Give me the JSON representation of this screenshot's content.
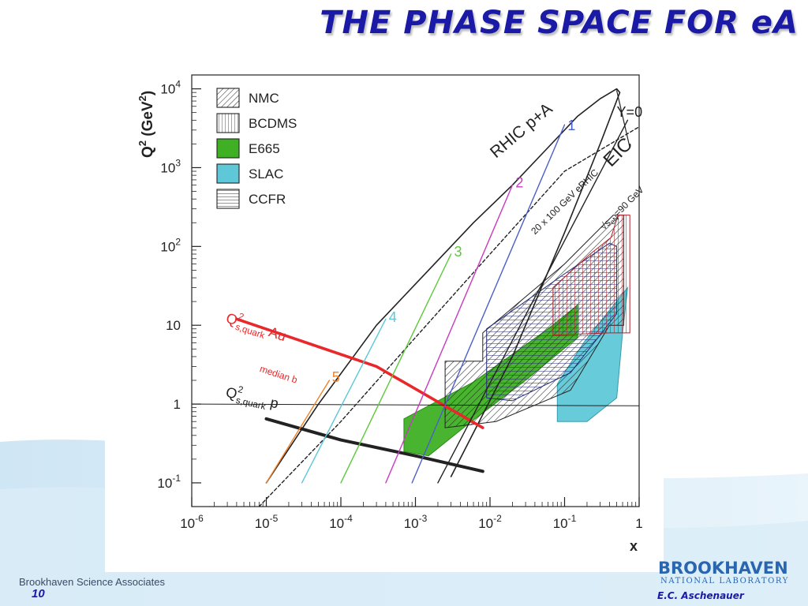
{
  "slide": {
    "title": "THE PHASE SPACE FOR eA",
    "footer_org": "Brookhaven Science Associates",
    "page_number": "10",
    "logo_name": "BROOKHAVEN",
    "logo_sub": "NATIONAL LABORATORY",
    "author": "E.C. Aschenauer",
    "colors": {
      "title": "#1a1aa6",
      "accent": "#2a66b0",
      "background_wave": "#cfe6f5"
    }
  },
  "chart_data": {
    "type": "region-plot",
    "title": "",
    "xlabel": "x",
    "ylabel_main": "Q",
    "ylabel_sup": "2",
    "ylabel_unit": " (GeV",
    "ylabel_unit_sup": "2",
    "ylabel_close": ")",
    "x_scale": "log",
    "y_scale": "log",
    "xlim": [
      1e-06,
      1
    ],
    "ylim": [
      0.05,
      15000
    ],
    "x_ticks": [
      {
        "value": 1e-06,
        "base": "10",
        "exp": "-6"
      },
      {
        "value": 1e-05,
        "base": "10",
        "exp": "-5"
      },
      {
        "value": 0.0001,
        "base": "10",
        "exp": "-4"
      },
      {
        "value": 0.001,
        "base": "10",
        "exp": "-3"
      },
      {
        "value": 0.01,
        "base": "10",
        "exp": "-2"
      },
      {
        "value": 0.1,
        "base": "10",
        "exp": "-1"
      },
      {
        "value": 1,
        "base": "1",
        "exp": ""
      }
    ],
    "y_ticks": [
      {
        "value": 0.1,
        "base": "10",
        "exp": "-1"
      },
      {
        "value": 1,
        "base": "1",
        "exp": ""
      },
      {
        "value": 10,
        "base": "10",
        "exp": ""
      },
      {
        "value": 100,
        "base": "10",
        "exp": "2"
      },
      {
        "value": 1000,
        "base": "10",
        "exp": "3"
      },
      {
        "value": 10000,
        "base": "10",
        "exp": "4"
      }
    ],
    "grid": false,
    "legend": {
      "placement": "top-left",
      "entries": [
        {
          "label": "NMC",
          "color": "#222222",
          "pattern": "diagonal-hatch"
        },
        {
          "label": "BCDMS",
          "color": "#b0202a",
          "pattern": "vertical-hatch"
        },
        {
          "label": "E665",
          "color": "#3fb024",
          "pattern": "solid"
        },
        {
          "label": "SLAC",
          "color": "#5fc8d8",
          "pattern": "solid"
        },
        {
          "label": "CCFR",
          "color": "#222a7a",
          "pattern": "horizontal-hatch"
        }
      ]
    },
    "regions": [
      {
        "name": "E665",
        "color": "#3fb024",
        "points": [
          [
            0.0007,
            0.25
          ],
          [
            0.0007,
            0.65
          ],
          [
            0.006,
            1.9
          ],
          [
            0.06,
            9
          ],
          [
            0.15,
            18
          ],
          [
            0.15,
            7
          ],
          [
            0.03,
            2
          ],
          [
            0.005,
            0.55
          ],
          [
            0.0015,
            0.22
          ]
        ]
      },
      {
        "name": "SLAC",
        "color": "#5fc8d8",
        "points": [
          [
            0.08,
            0.6
          ],
          [
            0.08,
            1.8
          ],
          [
            0.18,
            6
          ],
          [
            0.6,
            25
          ],
          [
            0.7,
            30
          ],
          [
            0.6,
            8
          ],
          [
            0.5,
            1.2
          ],
          [
            0.2,
            0.6
          ]
        ]
      },
      {
        "name": "NMC",
        "color": "#222222",
        "points": [
          [
            0.0025,
            0.5
          ],
          [
            0.0025,
            3.5
          ],
          [
            0.008,
            3.5
          ],
          [
            0.008,
            8
          ],
          [
            0.1,
            60
          ],
          [
            0.45,
            250
          ],
          [
            0.62,
            250
          ],
          [
            0.62,
            10
          ],
          [
            0.4,
            10
          ],
          [
            0.12,
            1.5
          ],
          [
            0.012,
            0.6
          ]
        ]
      },
      {
        "name": "CCFR",
        "color": "#222a7a",
        "points": [
          [
            0.009,
            1.2
          ],
          [
            0.009,
            9
          ],
          [
            0.1,
            45
          ],
          [
            0.4,
            110
          ],
          [
            0.5,
            100
          ],
          [
            0.5,
            14
          ],
          [
            0.12,
            2.5
          ],
          [
            0.02,
            1.1
          ]
        ]
      },
      {
        "name": "BCDMS",
        "color": "#b0202a",
        "points": [
          [
            0.07,
            7.5
          ],
          [
            0.07,
            30
          ],
          [
            0.22,
            80
          ],
          [
            0.42,
            130
          ],
          [
            0.52,
            250
          ],
          [
            0.75,
            250
          ],
          [
            0.75,
            8
          ],
          [
            0.4,
            8
          ]
        ]
      }
    ],
    "curves": [
      {
        "name": "RHIC p+A",
        "color": "#222222",
        "width": 1.6,
        "points": [
          [
            1e-05,
            0.1
          ],
          [
            5e-05,
            1
          ],
          [
            0.0003,
            10
          ],
          [
            0.0015,
            50
          ],
          [
            0.006,
            200
          ],
          [
            0.02,
            600
          ],
          [
            0.06,
            1800
          ],
          [
            0.15,
            4500
          ],
          [
            0.3,
            7500
          ],
          [
            0.5,
            10000
          ],
          [
            0.55,
            9000
          ],
          [
            0.3,
            2000
          ],
          [
            0.1,
            150
          ],
          [
            0.02,
            4
          ],
          [
            0.003,
            0.12
          ]
        ]
      },
      {
        "name": "EIC",
        "color": "#222222",
        "width": 1.4,
        "dashed": true,
        "points": [
          [
            8e-06,
            0.05
          ],
          [
            0.0001,
            0.6
          ],
          [
            0.001,
            7
          ],
          [
            0.01,
            80
          ],
          [
            0.1,
            900
          ],
          [
            1,
            3300
          ]
        ]
      },
      {
        "name": "Y=0",
        "color": "#222222",
        "width": 1.2,
        "points": [
          [
            0.5,
            9500
          ],
          [
            0.75,
            1800
          ]
        ]
      },
      {
        "name": "Q2 s,quark Au median b",
        "color": "#e8282a",
        "width": 3.6,
        "points": [
          [
            4e-06,
            12
          ],
          [
            0.0003,
            3
          ],
          [
            0.008,
            0.5
          ]
        ]
      },
      {
        "name": "Q2 s,quark p",
        "color": "#222222",
        "width": 4.0,
        "points": [
          [
            1e-05,
            0.65
          ],
          [
            0.0001,
            0.35
          ],
          [
            0.001,
            0.22
          ],
          [
            0.008,
            0.14
          ]
        ]
      },
      {
        "name": "Q2 = 1",
        "color": "#222222",
        "width": 1.0,
        "points": [
          [
            1e-06,
            1.0
          ],
          [
            1,
            0.95
          ]
        ]
      },
      {
        "name": "1",
        "color": "#4a5fc8",
        "width": 1.4,
        "points": [
          [
            0.0009,
            0.1
          ],
          [
            0.1,
            3500
          ]
        ]
      },
      {
        "name": "2",
        "color": "#c83ac0",
        "width": 1.4,
        "points": [
          [
            0.0004,
            0.1
          ],
          [
            0.02,
            600
          ]
        ]
      },
      {
        "name": "3",
        "color": "#5ec83a",
        "width": 1.4,
        "points": [
          [
            0.0001,
            0.1
          ],
          [
            0.003,
            80
          ]
        ]
      },
      {
        "name": "4",
        "color": "#5ac8d8",
        "width": 1.4,
        "points": [
          [
            3e-05,
            0.1
          ],
          [
            0.0004,
            12
          ]
        ]
      },
      {
        "name": "5",
        "color": "#f08228",
        "width": 1.4,
        "points": [
          [
            1e-05,
            0.1
          ],
          [
            7e-05,
            2
          ]
        ]
      },
      {
        "name": "extra",
        "color": "#222222",
        "width": 1.4,
        "points": [
          [
            0.002,
            0.1
          ],
          [
            0.7,
            4000
          ]
        ]
      }
    ],
    "annotations": [
      {
        "text": "1",
        "color": "#4a5fc8",
        "x": 0.11,
        "y": 3000
      },
      {
        "text": "2",
        "color": "#c83ac0",
        "x": 0.022,
        "y": 560
      },
      {
        "text": "3",
        "color": "#5ec83a",
        "x": 0.0033,
        "y": 75
      },
      {
        "text": "4",
        "color": "#5ac8d8",
        "x": 0.00044,
        "y": 11
      },
      {
        "text": "5",
        "color": "#f08228",
        "x": 7.6e-05,
        "y": 1.9
      },
      {
        "text": "RHIC p+A",
        "color": "#222222",
        "x": 0.012,
        "y": 1300,
        "rotate": -40
      },
      {
        "text": "Y=0",
        "color": "#222222",
        "x": 0.5,
        "y": 4400
      },
      {
        "text": "20 x 100 GeV eRHIC",
        "color": "#222222",
        "x": 0.04,
        "y": 140,
        "rotate": -44,
        "small": true
      },
      {
        "text": "EIC",
        "color": "#222222",
        "x": 0.42,
        "y": 1000,
        "rotate": -45,
        "big": true
      },
      {
        "text": "√s",
        "sub": "eN",
        "tail": "=90 GeV",
        "color": "#222222",
        "x": 0.34,
        "y": 160,
        "rotate": -45,
        "small": true
      },
      {
        "text": "Q",
        "sup": "2",
        "sub": "s,quark",
        "tail": " Au",
        "color": "#e8282a",
        "x": 2.8e-06,
        "y": 11,
        "rotate": 18
      },
      {
        "text": "median b",
        "color": "#e8282a",
        "x": 8e-06,
        "y": 2.6,
        "rotate": 18,
        "small": true
      },
      {
        "text": "Q",
        "sup": "2",
        "sub": "s,quark",
        "tail": " p",
        "color": "#222222",
        "x": 2.8e-06,
        "y": 1.25,
        "rotate": 13
      }
    ]
  }
}
